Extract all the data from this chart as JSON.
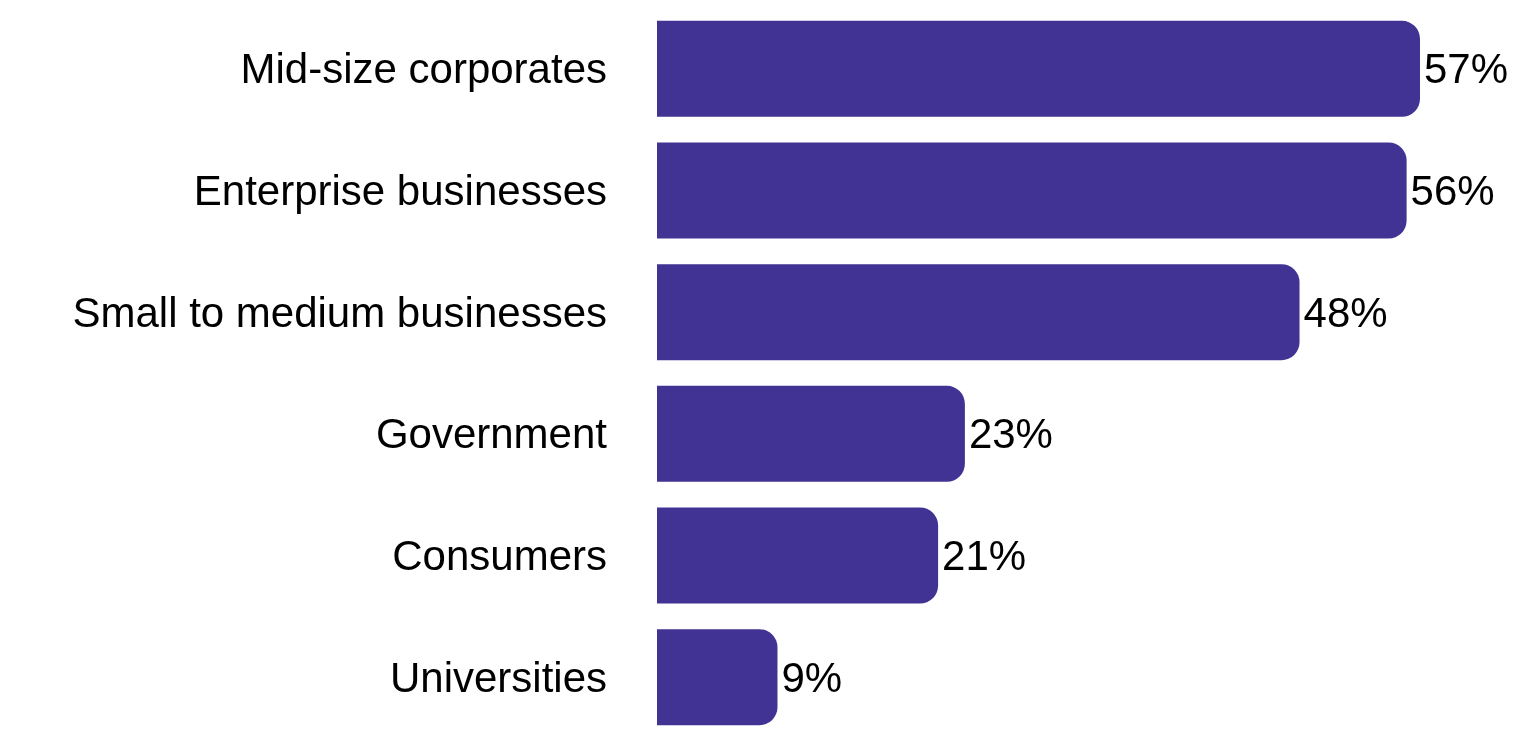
{
  "chart_data": {
    "type": "bar",
    "orientation": "horizontal",
    "categories": [
      "Mid-size corporates",
      "Enterprise businesses",
      "Small to medium businesses",
      "Government",
      "Consumers",
      "Universities"
    ],
    "values": [
      57,
      56,
      48,
      23,
      21,
      9
    ],
    "color": "#403393",
    "value_labels": [
      "57%",
      "56%",
      "48%",
      "23%",
      "21%",
      "9%"
    ]
  }
}
